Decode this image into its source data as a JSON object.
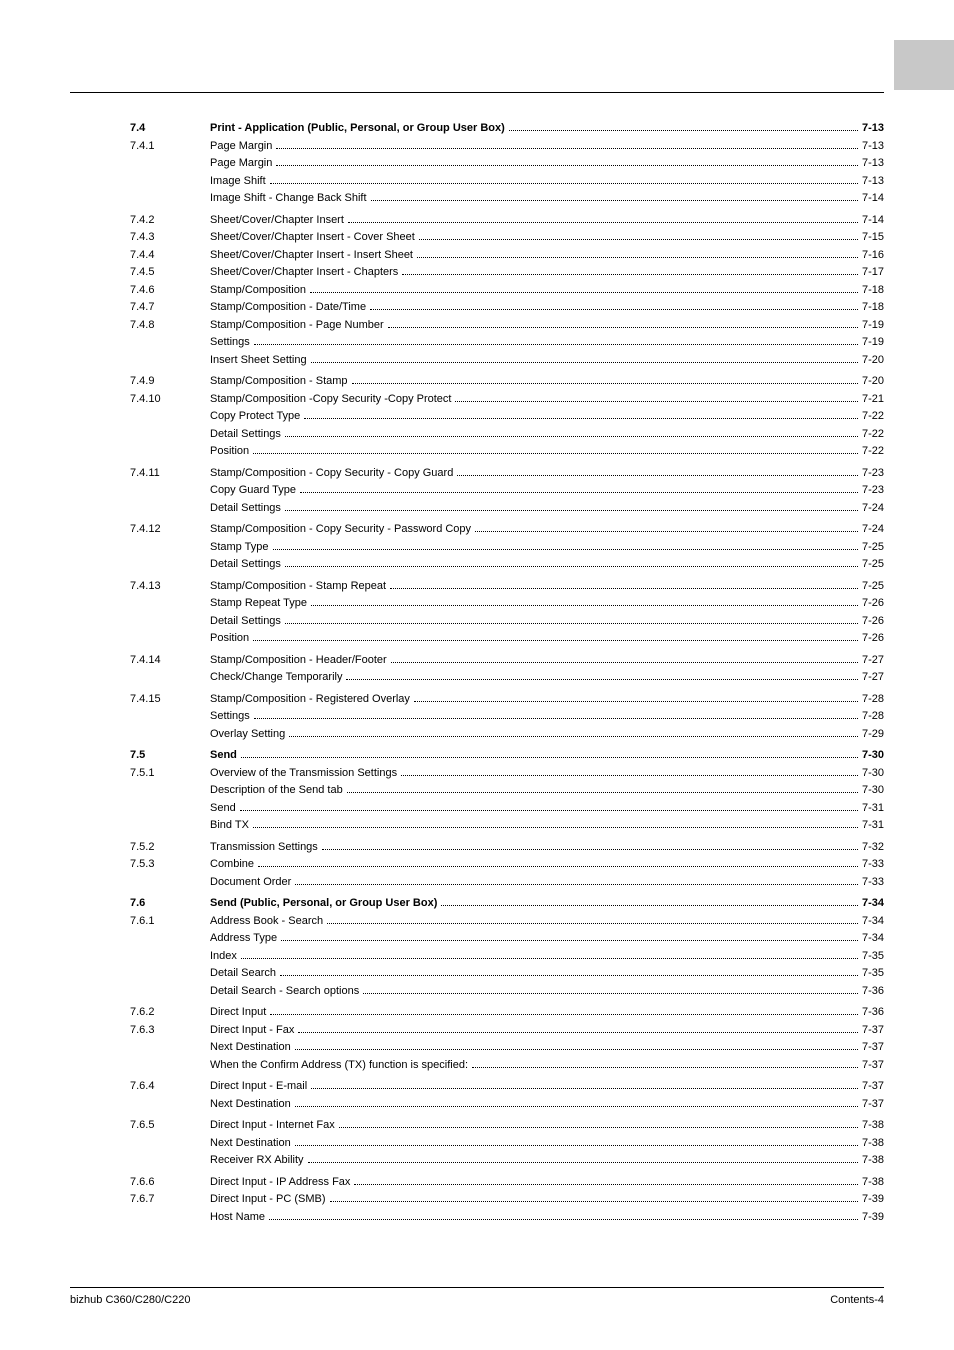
{
  "footer": {
    "left": "bizhub C360/C280/C220",
    "right": "Contents-4"
  },
  "toc": [
    {
      "num": "7.4",
      "label": "Print - Application (Public, Personal, or Group User Box)",
      "page": "7-13",
      "bold": true
    },
    {
      "num": "7.4.1",
      "label": "Page Margin",
      "page": "7-13"
    },
    {
      "num": "",
      "label": "Page Margin",
      "page": "7-13"
    },
    {
      "num": "",
      "label": "Image Shift",
      "page": "7-13"
    },
    {
      "num": "",
      "label": "Image Shift - Change Back Shift",
      "page": "7-14"
    },
    {
      "gap": true
    },
    {
      "num": "7.4.2",
      "label": "Sheet/Cover/Chapter Insert",
      "page": "7-14"
    },
    {
      "num": "7.4.3",
      "label": "Sheet/Cover/Chapter Insert - Cover Sheet",
      "page": "7-15"
    },
    {
      "num": "7.4.4",
      "label": "Sheet/Cover/Chapter Insert - Insert Sheet",
      "page": "7-16"
    },
    {
      "num": "7.4.5",
      "label": "Sheet/Cover/Chapter Insert - Chapters",
      "page": "7-17"
    },
    {
      "num": "7.4.6",
      "label": "Stamp/Composition",
      "page": "7-18"
    },
    {
      "num": "7.4.7",
      "label": "Stamp/Composition - Date/Time",
      "page": "7-18"
    },
    {
      "num": "7.4.8",
      "label": "Stamp/Composition - Page Number",
      "page": "7-19"
    },
    {
      "num": "",
      "label": "Settings",
      "page": "7-19"
    },
    {
      "num": "",
      "label": "Insert Sheet Setting",
      "page": "7-20"
    },
    {
      "gap": true
    },
    {
      "num": "7.4.9",
      "label": "Stamp/Composition - Stamp",
      "page": "7-20"
    },
    {
      "num": "7.4.10",
      "label": "Stamp/Composition -Copy Security -Copy Protect",
      "page": "7-21"
    },
    {
      "num": "",
      "label": "Copy Protect Type",
      "page": "7-22"
    },
    {
      "num": "",
      "label": "Detail Settings",
      "page": "7-22"
    },
    {
      "num": "",
      "label": "Position",
      "page": "7-22"
    },
    {
      "gap": true
    },
    {
      "num": "7.4.11",
      "label": "Stamp/Composition - Copy Security - Copy Guard",
      "page": "7-23"
    },
    {
      "num": "",
      "label": "Copy Guard Type",
      "page": "7-23"
    },
    {
      "num": "",
      "label": "Detail Settings",
      "page": "7-24"
    },
    {
      "gap": true
    },
    {
      "num": "7.4.12",
      "label": "Stamp/Composition - Copy Security - Password Copy",
      "page": "7-24"
    },
    {
      "num": "",
      "label": "Stamp Type",
      "page": "7-25"
    },
    {
      "num": "",
      "label": "Detail Settings",
      "page": "7-25"
    },
    {
      "gap": true
    },
    {
      "num": "7.4.13",
      "label": "Stamp/Composition - Stamp Repeat",
      "page": "7-25"
    },
    {
      "num": "",
      "label": "Stamp Repeat Type",
      "page": "7-26"
    },
    {
      "num": "",
      "label": "Detail Settings",
      "page": "7-26"
    },
    {
      "num": "",
      "label": "Position",
      "page": "7-26"
    },
    {
      "gap": true
    },
    {
      "num": "7.4.14",
      "label": "Stamp/Composition - Header/Footer",
      "page": "7-27"
    },
    {
      "num": "",
      "label": "Check/Change Temporarily",
      "page": "7-27"
    },
    {
      "gap": true
    },
    {
      "num": "7.4.15",
      "label": "Stamp/Composition - Registered Overlay",
      "page": "7-28"
    },
    {
      "num": "",
      "label": "Settings",
      "page": "7-28"
    },
    {
      "num": "",
      "label": "Overlay Setting",
      "page": "7-29"
    },
    {
      "gap": true
    },
    {
      "num": "7.5",
      "label": "Send",
      "page": "7-30",
      "bold": true
    },
    {
      "num": "7.5.1",
      "label": "Overview of the Transmission Settings",
      "page": "7-30"
    },
    {
      "num": "",
      "label": "Description of the Send tab",
      "page": "7-30"
    },
    {
      "num": "",
      "label": "Send",
      "page": "7-31"
    },
    {
      "num": "",
      "label": "Bind TX",
      "page": "7-31"
    },
    {
      "gap": true
    },
    {
      "num": "7.5.2",
      "label": "Transmission Settings",
      "page": "7-32"
    },
    {
      "num": "7.5.3",
      "label": "Combine",
      "page": "7-33"
    },
    {
      "num": "",
      "label": "Document Order",
      "page": "7-33"
    },
    {
      "gap": true
    },
    {
      "num": "7.6",
      "label": "Send (Public, Personal, or Group User Box)",
      "page": "7-34",
      "bold": true
    },
    {
      "num": "7.6.1",
      "label": "Address Book - Search",
      "page": "7-34"
    },
    {
      "num": "",
      "label": "Address Type",
      "page": "7-34"
    },
    {
      "num": "",
      "label": "Index",
      "page": "7-35"
    },
    {
      "num": "",
      "label": "Detail Search",
      "page": "7-35"
    },
    {
      "num": "",
      "label": "Detail Search - Search options",
      "page": "7-36"
    },
    {
      "gap": true
    },
    {
      "num": "7.6.2",
      "label": "Direct Input",
      "page": "7-36"
    },
    {
      "num": "7.6.3",
      "label": "Direct Input - Fax",
      "page": "7-37"
    },
    {
      "num": "",
      "label": "Next Destination",
      "page": "7-37"
    },
    {
      "num": "",
      "label": "When the Confirm Address (TX) function is specified:",
      "page": "7-37"
    },
    {
      "gap": true
    },
    {
      "num": "7.6.4",
      "label": "Direct Input - E-mail",
      "page": "7-37"
    },
    {
      "num": "",
      "label": "Next Destination",
      "page": "7-37"
    },
    {
      "gap": true
    },
    {
      "num": "7.6.5",
      "label": "Direct Input - Internet Fax",
      "page": "7-38"
    },
    {
      "num": "",
      "label": "Next Destination",
      "page": "7-38"
    },
    {
      "num": "",
      "label": "Receiver RX Ability",
      "page": "7-38"
    },
    {
      "gap": true
    },
    {
      "num": "7.6.6",
      "label": "Direct Input - IP Address Fax",
      "page": "7-38"
    },
    {
      "num": "7.6.7",
      "label": "Direct Input - PC (SMB)",
      "page": "7-39"
    },
    {
      "num": "",
      "label": "Host Name",
      "page": "7-39"
    }
  ]
}
